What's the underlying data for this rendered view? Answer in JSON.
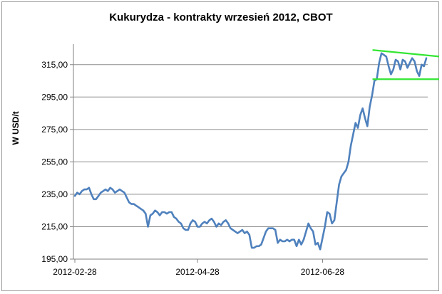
{
  "chart_data": {
    "type": "line",
    "title": "Kukurydza - kontrakty wrzesień 2012, CBOT",
    "ylabel": "W USD/t",
    "xlabel": "",
    "ylim": [
      195,
      325
    ],
    "y_ticks": [
      "195,00",
      "215,00",
      "235,00",
      "255,00",
      "275,00",
      "295,00",
      "315,00"
    ],
    "x_ticks": [
      "2012-02-28",
      "2012-04-28",
      "2012-06-28"
    ],
    "x_tick_indices": [
      0,
      52,
      105
    ],
    "x_count": 150,
    "grid": true,
    "series": [
      {
        "color": "#4f81bd",
        "values": [
          234,
          236,
          235,
          237,
          238,
          238,
          239,
          235,
          232,
          232,
          234,
          236,
          237,
          238,
          237,
          239,
          238,
          236,
          237,
          238,
          237,
          236,
          233,
          230,
          229,
          229,
          228,
          227,
          226,
          225,
          223,
          215,
          222,
          223,
          225,
          224,
          222,
          224,
          224,
          223,
          224,
          224,
          221,
          220,
          218,
          217,
          214,
          213,
          213,
          217,
          219,
          218,
          215,
          215,
          217,
          218,
          217,
          219,
          220,
          218,
          215,
          217,
          216,
          218,
          219,
          217,
          214,
          213,
          212,
          211,
          212,
          213,
          211,
          212,
          210,
          202,
          202,
          203,
          203,
          204,
          208,
          212,
          214,
          214,
          214,
          213,
          205,
          207,
          206,
          206,
          207,
          206,
          207,
          207,
          203,
          207,
          204,
          207,
          212,
          217,
          214,
          212,
          204,
          205,
          201,
          208,
          215,
          224,
          223,
          217,
          219,
          230,
          241,
          246,
          248,
          250,
          255,
          265,
          272,
          279,
          276,
          284,
          288,
          282,
          277,
          289,
          296,
          305,
          306,
          316,
          322,
          321,
          320,
          314,
          309,
          312,
          318,
          317,
          312,
          318,
          317,
          313,
          316,
          319,
          317,
          311,
          308,
          315,
          314,
          319
        ]
      }
    ],
    "trend_lines": {
      "color": "#33e633",
      "upper": [
        [
          128,
          324
        ],
        [
          150,
          320
        ]
      ],
      "lower": [
        [
          128,
          306
        ],
        [
          150,
          306
        ]
      ]
    }
  }
}
